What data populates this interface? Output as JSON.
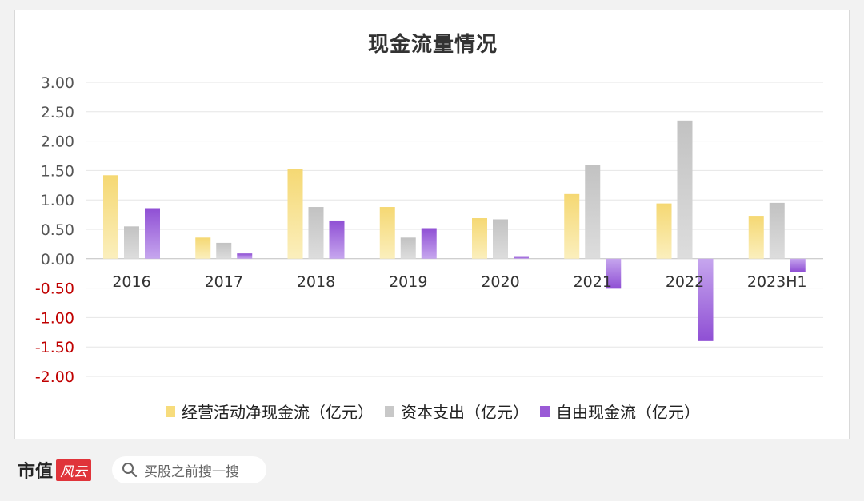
{
  "chart_data": {
    "type": "bar",
    "title": "现金流量情况",
    "categories": [
      "2016",
      "2017",
      "2018",
      "2019",
      "2020",
      "2021",
      "2022",
      "2023H1"
    ],
    "series": [
      {
        "name": "经营活动净现金流（亿元）",
        "color": "#f7dc7c",
        "values": [
          1.42,
          0.36,
          1.53,
          0.88,
          0.69,
          1.1,
          0.94,
          0.73
        ]
      },
      {
        "name": "资本支出（亿元）",
        "color": "#c8c8c8",
        "values": [
          0.55,
          0.27,
          0.88,
          0.36,
          0.67,
          1.6,
          2.35,
          0.95
        ]
      },
      {
        "name": "自由现金流（亿元）",
        "color": "#9a5ad6",
        "values": [
          0.86,
          0.09,
          0.65,
          0.52,
          0.03,
          -0.51,
          -1.4,
          -0.22
        ]
      }
    ],
    "ylim": [
      -2.0,
      3.0
    ],
    "yticks": [
      "3.00",
      "2.50",
      "2.00",
      "1.50",
      "1.00",
      "0.50",
      "0.00",
      "-0.50",
      "-1.00",
      "-1.50",
      "-2.00"
    ],
    "ytick_values": [
      3.0,
      2.5,
      2.0,
      1.5,
      1.0,
      0.5,
      0.0,
      -0.5,
      -1.0,
      -1.5,
      -2.0
    ],
    "positive_tick_color": "#555555",
    "negative_tick_color": "#c00000",
    "grid": true,
    "legend_position": "bottom"
  },
  "footer": {
    "brand_text": "市值",
    "brand_logo": "风云",
    "search_placeholder": "买股之前搜一搜"
  }
}
